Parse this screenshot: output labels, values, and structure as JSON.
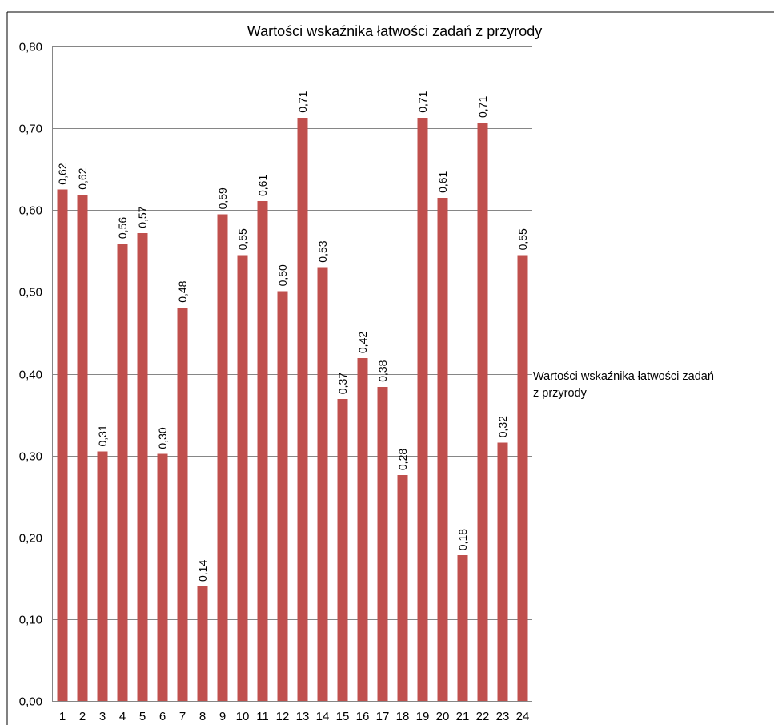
{
  "chart_data": {
    "type": "bar",
    "title": "Wartości wskaźnika łatwości zadań z przyrody",
    "xlabel": "",
    "ylabel": "",
    "ylim": [
      0,
      0.8
    ],
    "y_ticks": [
      "0,00",
      "0,10",
      "0,20",
      "0,30",
      "0,40",
      "0,50",
      "0,60",
      "0,70",
      "0,80"
    ],
    "grid": true,
    "legend_position": "right",
    "categories": [
      "1",
      "2",
      "3",
      "4",
      "5",
      "6",
      "7",
      "8",
      "9",
      "10",
      "11",
      "12",
      "13",
      "14",
      "15",
      "16",
      "17",
      "18",
      "19",
      "20",
      "21",
      "22",
      "23",
      "24"
    ],
    "series": [
      {
        "name": "Wartości wskaźnika łatwości zadań z przyrody",
        "legend_lines": [
          "Wartości wskaźnika łatwości zadań",
          "z przyrody"
        ],
        "color": "#C0504D",
        "values": [
          0.625,
          0.619,
          0.305,
          0.559,
          0.572,
          0.302,
          0.481,
          0.14,
          0.595,
          0.545,
          0.611,
          0.501,
          0.713,
          0.53,
          0.369,
          0.419,
          0.384,
          0.276,
          0.713,
          0.615,
          0.178,
          0.707,
          0.316,
          0.545
        ],
        "data_labels": [
          "0,62",
          "0,62",
          "0,31",
          "0,56",
          "0,57",
          "0,30",
          "0,48",
          "0,14",
          "0,59",
          "0,55",
          "0,61",
          "0,50",
          "0,71",
          "0,53",
          "0,37",
          "0,42",
          "0,38",
          "0,28",
          "0,71",
          "0,61",
          "0,18",
          "0,71",
          "0,32",
          "0,55"
        ]
      }
    ]
  }
}
